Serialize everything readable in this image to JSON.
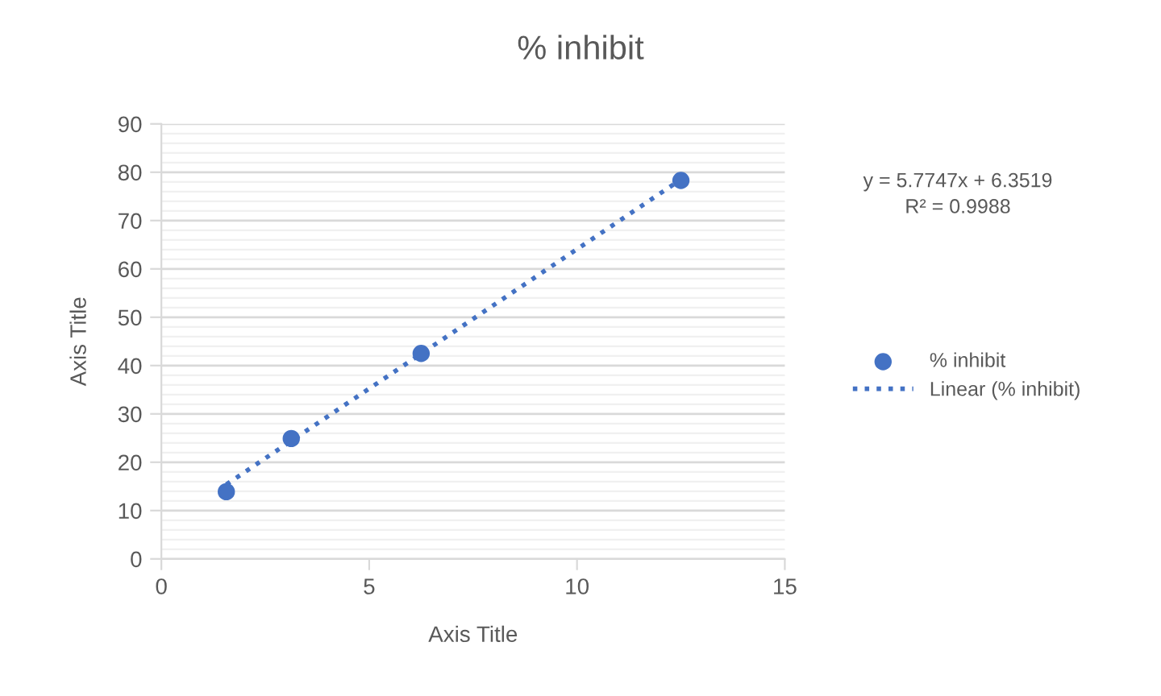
{
  "chart_data": {
    "type": "scatter",
    "title": "% inhibit",
    "xlabel": "Axis Title",
    "ylabel": "Axis Title",
    "series": [
      {
        "name": "% inhibit",
        "color": "#4472c4",
        "marker": "circle",
        "x": [
          1.5625,
          3.125,
          6.25,
          12.5
        ],
        "values": [
          13.9,
          24.9,
          42.5,
          78.3
        ]
      },
      {
        "name": "Linear (% inhibit)",
        "type": "line",
        "color": "#4472c4",
        "line_style": "dotted",
        "marker": "none",
        "x": [
          1.5625,
          12.5
        ],
        "values": [
          15.4,
          78.5
        ]
      }
    ],
    "annotations": [
      "y = 5.7747x + 6.3519\nR² = 0.9988"
    ],
    "xlim": [
      0,
      15
    ],
    "xticks": [
      0,
      5,
      10,
      15
    ],
    "ylim": [
      0,
      90
    ],
    "yticks": [
      0,
      {
        "value": 2,
        "label": null
      },
      {
        "value": 4,
        "label": null
      },
      {
        "value": 6,
        "label": null
      },
      {
        "value": 8,
        "label": null
      },
      10,
      {
        "value": 12,
        "label": null
      },
      {
        "value": 14,
        "label": null
      },
      {
        "value": 16,
        "label": null
      },
      {
        "value": 18,
        "label": null
      },
      20,
      {
        "value": 22,
        "label": null
      },
      {
        "value": 24,
        "label": null
      },
      {
        "value": 26,
        "label": null
      },
      {
        "value": 28,
        "label": null
      },
      30,
      {
        "value": 32,
        "label": null
      },
      {
        "value": 34,
        "label": null
      },
      {
        "value": 36,
        "label": null
      },
      {
        "value": 38,
        "label": null
      },
      40,
      {
        "value": 42,
        "label": null
      },
      {
        "value": 44,
        "label": null
      },
      {
        "value": 46,
        "label": null
      },
      {
        "value": 48,
        "label": null
      },
      50,
      {
        "value": 52,
        "label": null
      },
      {
        "value": 54,
        "label": null
      },
      {
        "value": 56,
        "label": null
      },
      {
        "value": 58,
        "label": null
      },
      60,
      {
        "value": 62,
        "label": null
      },
      {
        "value": 64,
        "label": null
      },
      {
        "value": 66,
        "label": null
      },
      {
        "value": 68,
        "label": null
      },
      70,
      {
        "value": 72,
        "label": null
      },
      {
        "value": 74,
        "label": null
      },
      {
        "value": 76,
        "label": null
      },
      {
        "value": 78,
        "label": null
      },
      80,
      {
        "value": 82,
        "label": null
      },
      {
        "value": 84,
        "label": null
      },
      {
        "value": 86,
        "label": null
      },
      {
        "value": 88,
        "label": null
      },
      90
    ],
    "grid": "y",
    "legend": "right"
  }
}
